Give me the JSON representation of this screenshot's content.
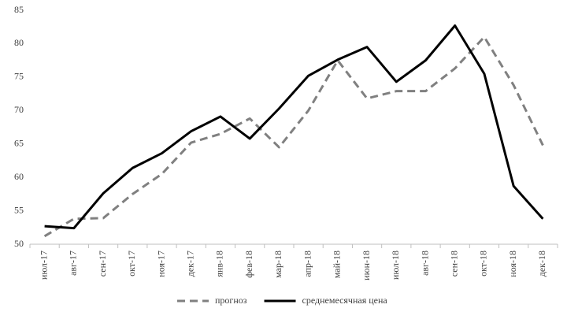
{
  "chart_data": {
    "type": "line",
    "categories": [
      "июл-17",
      "авг-17",
      "сен-17",
      "окт-17",
      "ноя-17",
      "дек-17",
      "янв-18",
      "фев-18",
      "мар-18",
      "апр-18",
      "май-18",
      "июн-18",
      "июл-18",
      "авг-18",
      "сен-18",
      "окт-18",
      "ноя-18",
      "дек-18"
    ],
    "series": [
      {
        "name": "прогноз",
        "color": "#808080",
        "dashed": true,
        "values": [
          51.2,
          53.8,
          53.9,
          57.5,
          60.5,
          65.2,
          66.5,
          68.8,
          64.5,
          70,
          77.5,
          71.8,
          72.9,
          72.9,
          76.3,
          81,
          73.8,
          64.8
        ]
      },
      {
        "name": "среднемесячная цена",
        "color": "#000000",
        "dashed": false,
        "values": [
          52.7,
          52.4,
          57.6,
          61.4,
          63.6,
          66.9,
          69.1,
          65.8,
          70.3,
          75.2,
          77.6,
          79.5,
          74.3,
          77.5,
          82.7,
          75.5,
          58.7,
          53.8
        ]
      }
    ],
    "ylim": [
      50,
      85
    ],
    "yticks": [
      50,
      55,
      60,
      65,
      70,
      75,
      80,
      85
    ],
    "grid": false,
    "legend": "bottom"
  }
}
